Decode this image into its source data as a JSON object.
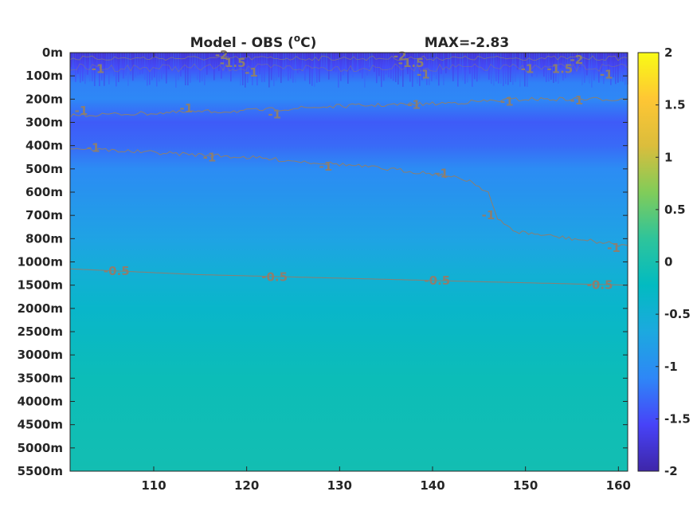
{
  "chart_data": {
    "type": "heatmap",
    "title_left": "Model - OBS (",
    "title_unit_sup": "o",
    "title_unit_tail": "C)",
    "title_right": "MAX=-2.83",
    "x_ticks": [
      "110",
      "120",
      "130",
      "140",
      "150",
      "160"
    ],
    "x_tick_values": [
      110,
      120,
      130,
      140,
      150,
      160
    ],
    "xlim": [
      101,
      161
    ],
    "y_ticks": [
      "0m",
      "100m",
      "200m",
      "300m",
      "400m",
      "500m",
      "600m",
      "700m",
      "800m",
      "1000m",
      "1500m",
      "2000m",
      "2500m",
      "3000m",
      "3500m",
      "4000m",
      "4500m",
      "5000m",
      "5500m"
    ],
    "colorbar_ticks": [
      "2",
      "1.5",
      "1",
      "0.5",
      "0",
      "-0.5",
      "-1",
      "-1.5",
      "-2"
    ],
    "colorbar_values": [
      2,
      1.5,
      1,
      0.5,
      0,
      -0.5,
      -1,
      -1.5,
      -2
    ],
    "clim": [
      -2,
      2
    ],
    "colormap": [
      "#3e26a8",
      "#4743f8",
      "#2e87f7",
      "#1ca9df",
      "#02bbc1",
      "#2ec49b",
      "#81cc59",
      "#dbbd3c",
      "#fec634",
      "#f9fb15"
    ],
    "field_rows": [
      {
        "depth_index": 0.0,
        "value": -1.8
      },
      {
        "depth_index": 0.6,
        "value": -1.5
      },
      {
        "depth_index": 1.3,
        "value": -1.15
      },
      {
        "depth_index": 2.0,
        "value": -1.1
      },
      {
        "depth_index": 3.0,
        "value": -1.4
      },
      {
        "depth_index": 4.0,
        "value": -1.3
      },
      {
        "depth_index": 5.0,
        "value": -1.05
      },
      {
        "depth_index": 6.0,
        "value": -0.95
      },
      {
        "depth_index": 8.0,
        "value": -0.75
      },
      {
        "depth_index": 9.5,
        "value": -0.52
      },
      {
        "depth_index": 11.0,
        "value": -0.35
      },
      {
        "depth_index": 14.0,
        "value": -0.12
      },
      {
        "depth_index": 18.0,
        "value": -0.05
      }
    ],
    "contours": [
      {
        "level": "-1",
        "points": [
          [
            101,
            2.7
          ],
          [
            110,
            2.6
          ],
          [
            120,
            2.5
          ],
          [
            130,
            2.3
          ],
          [
            140,
            2.2
          ],
          [
            150,
            2.0
          ],
          [
            156,
            2.0
          ],
          [
            161,
            2.0
          ]
        ],
        "labels": [
          [
            102.2,
            2.5
          ],
          [
            113.5,
            2.4
          ],
          [
            123,
            2.65
          ],
          [
            138,
            2.25
          ],
          [
            148,
            2.1
          ],
          [
            155.5,
            2.05
          ]
        ]
      },
      {
        "level": "-1",
        "points": [
          [
            101,
            4.1
          ],
          [
            110,
            4.3
          ],
          [
            120,
            4.5
          ],
          [
            130,
            4.8
          ],
          [
            140,
            5.2
          ],
          [
            144,
            5.5
          ],
          [
            146,
            6.0
          ],
          [
            147,
            7.2
          ],
          [
            149,
            7.7
          ],
          [
            155,
            8.0
          ],
          [
            161,
            8.3
          ]
        ],
        "labels": [
          [
            103.5,
            4.1
          ],
          [
            116,
            4.5
          ],
          [
            128.5,
            4.9
          ],
          [
            141,
            5.2
          ],
          [
            146,
            7.0
          ],
          [
            159.5,
            8.4
          ]
        ]
      },
      {
        "level": "-0.5",
        "points": [
          [
            101,
            9.3
          ],
          [
            115,
            9.55
          ],
          [
            130,
            9.7
          ],
          [
            145,
            9.85
          ],
          [
            161,
            10.0
          ]
        ],
        "labels": [
          [
            106,
            9.4
          ],
          [
            123,
            9.65
          ],
          [
            140.5,
            9.8
          ],
          [
            158,
            10.0
          ]
        ]
      }
    ],
    "surface_labels": [
      [
        "-2",
        117.3,
        0.1
      ],
      [
        "-1.5",
        118.5,
        0.45
      ],
      [
        "-2",
        136.5,
        0.15
      ],
      [
        "-1.5",
        137.7,
        0.45
      ],
      [
        "-1",
        139,
        0.95
      ],
      [
        "-1",
        104,
        0.7
      ],
      [
        "-1",
        120.5,
        0.85
      ],
      [
        "-2",
        155.5,
        0.3
      ],
      [
        "-1",
        150.2,
        0.7
      ],
      [
        "-1.5",
        153.7,
        0.7
      ],
      [
        "-1",
        158.7,
        0.95
      ]
    ]
  }
}
